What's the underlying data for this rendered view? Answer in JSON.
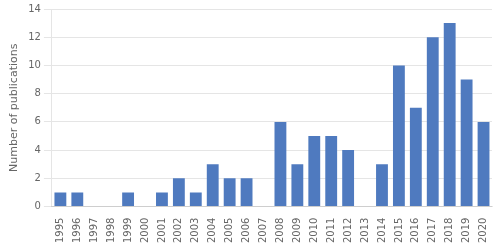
{
  "chart_data": {
    "type": "bar",
    "ylabel": "Number of publications",
    "categories": [
      "1995",
      "1996",
      "1997",
      "1998",
      "1999",
      "2000",
      "2001",
      "2002",
      "2003",
      "2004",
      "2005",
      "2006",
      "2007",
      "2008",
      "2009",
      "2010",
      "2011",
      "2012",
      "2013",
      "2014",
      "2015",
      "2016",
      "2017",
      "2018",
      "2019",
      "2020"
    ],
    "values": [
      1,
      1,
      0,
      0,
      1,
      0,
      1,
      2,
      1,
      3,
      2,
      2,
      0,
      6,
      3,
      5,
      5,
      4,
      0,
      3,
      10,
      7,
      12,
      13,
      9,
      6
    ],
    "color": "#4F7ABF",
    "ylim": [
      0,
      14
    ],
    "yticks": [
      0,
      2,
      4,
      6,
      8,
      10,
      12,
      14
    ],
    "grid": true
  }
}
